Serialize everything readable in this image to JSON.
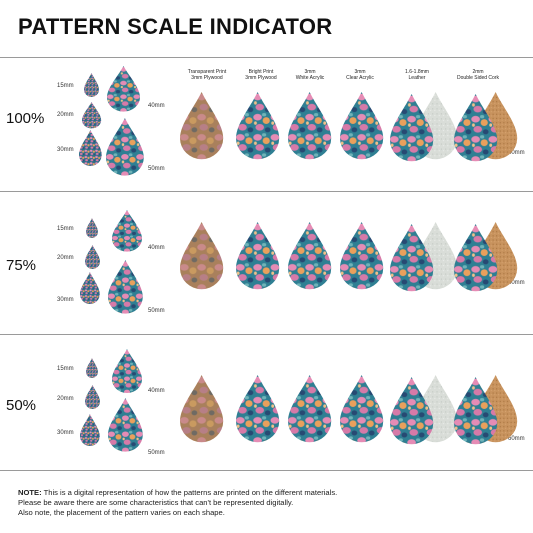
{
  "title": "PATTERN SCALE INDICATOR",
  "columns": [
    {
      "line1": "Transparent Print",
      "line2": "3mm Plywood"
    },
    {
      "line1": "Bright Print",
      "line2": "3mm Plywood"
    },
    {
      "line1": "3mm",
      "line2": "White Acrylic"
    },
    {
      "line1": "3mm",
      "line2": "Clear Acrylic"
    },
    {
      "line1": "1.6-1.8mm",
      "line2": "Leather"
    },
    {
      "line1": "2mm",
      "line2": "Double Sided Cork"
    }
  ],
  "rows": [
    {
      "scale": "100%"
    },
    {
      "scale": "75%"
    },
    {
      "scale": "50%"
    }
  ],
  "sizes": {
    "s15": "15mm",
    "s20": "20mm",
    "s30": "30mm",
    "s40": "40mm",
    "s50": "50mm",
    "s60": "60mm"
  },
  "note": {
    "label": "NOTE:",
    "line1": " This is a digital representation of how the patterns are printed on the different materials.",
    "line2": "Please be aware there are some characteristics that can't be represented digitally.",
    "line3": "Also note, the placement of the pattern varies on each shape."
  },
  "colors": {
    "teal": "#2f7f93",
    "pink": "#e58cb5",
    "orange": "#e9a05c",
    "navy": "#274a73",
    "wood": "#b07c52",
    "leather": "#d9ddd8",
    "cork": "#c8935e"
  }
}
